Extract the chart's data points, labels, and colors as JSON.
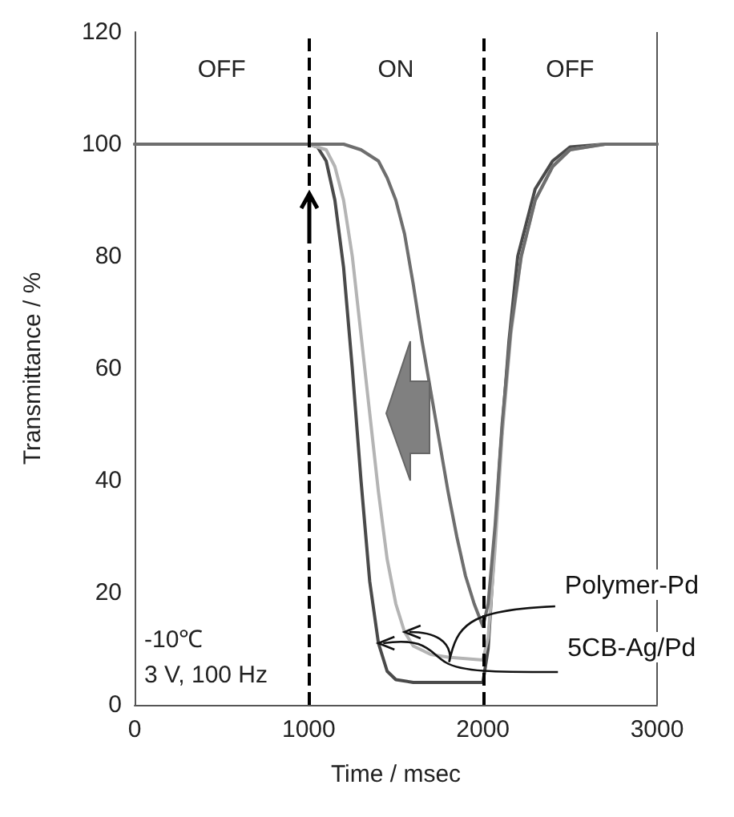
{
  "chart_data": {
    "type": "line",
    "xlabel": "Time / msec",
    "ylabel": "Transmittance / %",
    "xlim": [
      0,
      3000
    ],
    "xticks": [
      0,
      1000,
      2000,
      3000
    ],
    "ylim": [
      0,
      120
    ],
    "yticks": [
      0,
      20,
      40,
      60,
      80,
      100,
      120
    ],
    "grid": false,
    "marker": "none",
    "line_style": "solid",
    "series": [
      {
        "color": "#4a4a4a",
        "x": [
          0,
          500,
          1000,
          1050,
          1100,
          1150,
          1200,
          1250,
          1300,
          1350,
          1400,
          1450,
          1500,
          1600,
          1800,
          2000,
          2030,
          2060,
          2100,
          2150,
          2200,
          2300,
          2400,
          2500,
          2700,
          3000
        ],
        "values": [
          100,
          100,
          100,
          99.5,
          97,
          90,
          78,
          60,
          40,
          22,
          11,
          6,
          4.5,
          4,
          4,
          4,
          10,
          25,
          45,
          65,
          80,
          92,
          97,
          99.5,
          100,
          100
        ]
      },
      {
        "color": "#b4b4b4",
        "x": [
          0,
          500,
          1000,
          1100,
          1150,
          1200,
          1250,
          1300,
          1350,
          1400,
          1450,
          1500,
          1550,
          1600,
          1700,
          1800,
          2000,
          2030,
          2070,
          2110,
          2160,
          2220,
          2300,
          2400,
          2500,
          2700,
          3000
        ],
        "values": [
          100,
          100,
          100,
          99,
          96,
          90,
          80,
          66,
          52,
          38,
          26,
          18,
          13,
          10.5,
          9,
          8.5,
          8,
          12,
          28,
          48,
          66,
          80,
          90,
          96,
          99,
          100,
          100
        ]
      },
      {
        "color": "#6e6e6e",
        "x": [
          0,
          500,
          1000,
          1200,
          1300,
          1400,
          1450,
          1500,
          1550,
          1600,
          1650,
          1700,
          1750,
          1800,
          1850,
          1900,
          1950,
          2000,
          2030,
          2070,
          2110,
          2160,
          2220,
          2300,
          2400,
          2500,
          2700,
          3000
        ],
        "values": [
          100,
          100,
          100,
          100,
          99,
          97,
          94,
          90,
          84,
          75,
          65,
          56,
          47,
          38,
          30,
          23,
          18,
          14,
          18,
          32,
          50,
          67,
          80,
          90,
          96,
          99,
          100,
          100
        ]
      }
    ],
    "ref_lines": [
      {
        "axis": "x",
        "value": 1000,
        "color": "#000000",
        "line_style": "dashed"
      },
      {
        "axis": "x",
        "value": 2000,
        "color": "#000000",
        "line_style": "dashed"
      }
    ],
    "annotations": [
      "OFF",
      "ON",
      "OFF",
      {
        "text": "Polymer-Pd",
        "x": 1550,
        "y": 13
      },
      {
        "text": "5CB-Ag/Pd",
        "x": 1400,
        "y": 11
      },
      "-10℃",
      "3 V, 100 Hz"
    ]
  }
}
